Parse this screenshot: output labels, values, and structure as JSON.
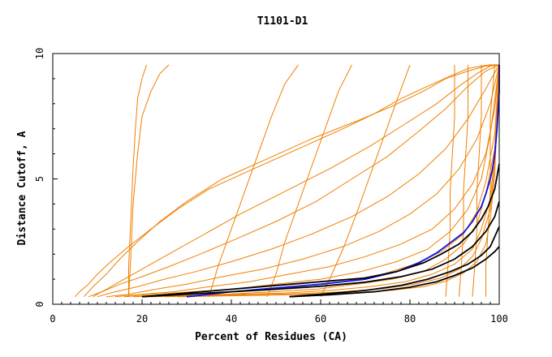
{
  "chart_data": {
    "type": "line",
    "title": "T1101-D1",
    "xlabel": "Percent of Residues (CA)",
    "ylabel": "Distance Cutoff, A",
    "xlim": [
      0,
      100
    ],
    "ylim": [
      0,
      10
    ],
    "x_ticks": [
      "0",
      "20",
      "40",
      "60",
      "80",
      "100"
    ],
    "y_ticks": [
      "0",
      "5",
      "10"
    ],
    "grid": false,
    "legend": "none",
    "colors": {
      "orange": "#f08000",
      "blue": "#1010e0",
      "black": "#000000",
      "axis": "#000000"
    },
    "series": [
      {
        "color": "orange",
        "x": [
          5,
          6,
          8,
          10,
          13,
          17,
          22,
          28,
          35,
          45,
          55,
          65,
          72,
          78,
          84,
          89,
          93,
          96,
          98,
          99,
          100
        ],
        "y": [
          0.3,
          0.5,
          0.8,
          1.2,
          1.7,
          2.3,
          3.0,
          3.8,
          4.6,
          5.4,
          6.2,
          7.0,
          7.6,
          8.2,
          8.7,
          9.1,
          9.4,
          9.5,
          9.55,
          9.55,
          9.55
        ]
      },
      {
        "color": "orange",
        "x": [
          7,
          9,
          12,
          15,
          19,
          24,
          30,
          38,
          48,
          58,
          68,
          76,
          83,
          88,
          93,
          97,
          100
        ],
        "y": [
          0.3,
          0.7,
          1.2,
          1.8,
          2.5,
          3.3,
          4.1,
          5.0,
          5.8,
          6.6,
          7.3,
          7.9,
          8.5,
          9.0,
          9.3,
          9.5,
          9.55
        ]
      },
      {
        "color": "orange",
        "x": [
          9,
          12,
          16,
          21,
          27,
          34,
          42,
          52,
          62,
          71,
          79,
          86,
          91,
          95,
          98,
          100
        ],
        "y": [
          0.3,
          0.6,
          1.0,
          1.5,
          2.1,
          2.8,
          3.6,
          4.5,
          5.4,
          6.3,
          7.2,
          8.0,
          8.7,
          9.2,
          9.5,
          9.55
        ]
      },
      {
        "color": "orange",
        "x": [
          8,
          11,
          15,
          20,
          26,
          33,
          41,
          50,
          59,
          67,
          75,
          82,
          88,
          93,
          97,
          100
        ],
        "y": [
          0.3,
          0.5,
          0.8,
          1.1,
          1.5,
          2.0,
          2.6,
          3.3,
          4.1,
          5.0,
          5.9,
          6.9,
          7.8,
          8.7,
          9.3,
          9.55
        ]
      },
      {
        "color": "orange",
        "x": [
          10,
          14,
          19,
          25,
          32,
          40,
          49,
          58,
          67,
          75,
          82,
          88,
          93,
          97,
          100
        ],
        "y": [
          0.3,
          0.5,
          0.7,
          1.0,
          1.3,
          1.7,
          2.2,
          2.8,
          3.5,
          4.3,
          5.2,
          6.2,
          7.4,
          8.6,
          9.55
        ]
      },
      {
        "color": "orange",
        "x": [
          12,
          17,
          23,
          30,
          38,
          47,
          56,
          65,
          73,
          80,
          86,
          91,
          95,
          98,
          100
        ],
        "y": [
          0.3,
          0.4,
          0.6,
          0.8,
          1.1,
          1.4,
          1.8,
          2.3,
          2.9,
          3.6,
          4.4,
          5.4,
          6.6,
          8.0,
          9.55
        ]
      },
      {
        "color": "orange",
        "x": [
          14,
          20,
          27,
          35,
          44,
          53,
          62,
          70,
          78,
          85,
          90,
          94,
          97,
          99,
          100
        ],
        "y": [
          0.3,
          0.4,
          0.5,
          0.7,
          0.9,
          1.2,
          1.5,
          1.9,
          2.4,
          3.0,
          3.8,
          4.8,
          6.0,
          7.8,
          9.55
        ]
      },
      {
        "color": "orange",
        "x": [
          16,
          23,
          31,
          40,
          50,
          60,
          69,
          77,
          84,
          89,
          93,
          96,
          98,
          100
        ],
        "y": [
          0.3,
          0.4,
          0.5,
          0.6,
          0.8,
          1.0,
          1.3,
          1.7,
          2.2,
          2.9,
          3.8,
          5.0,
          6.8,
          9.55
        ]
      },
      {
        "color": "orange",
        "x": [
          18,
          26,
          35,
          45,
          55,
          65,
          74,
          81,
          87,
          92,
          95,
          97,
          99,
          100
        ],
        "y": [
          0.3,
          0.35,
          0.45,
          0.55,
          0.7,
          0.9,
          1.2,
          1.6,
          2.1,
          2.8,
          3.7,
          4.9,
          6.8,
          9.55
        ]
      },
      {
        "color": "orange",
        "x": [
          20,
          29,
          39,
          49,
          59,
          68,
          76,
          83,
          88,
          92,
          95,
          97,
          99,
          100
        ],
        "y": [
          0.3,
          0.35,
          0.4,
          0.5,
          0.6,
          0.8,
          1.0,
          1.3,
          1.8,
          2.4,
          3.2,
          4.4,
          6.2,
          9.55
        ]
      },
      {
        "color": "orange",
        "x": [
          22,
          32,
          42,
          52,
          62,
          71,
          79,
          85,
          90,
          94,
          96,
          98,
          99,
          100
        ],
        "y": [
          0.3,
          0.35,
          0.4,
          0.45,
          0.55,
          0.7,
          0.9,
          1.2,
          1.6,
          2.2,
          3.0,
          4.2,
          6.0,
          9.55
        ]
      },
      {
        "color": "orange",
        "x": [
          25,
          35,
          45,
          55,
          65,
          74,
          81,
          87,
          91,
          94,
          96,
          98,
          99,
          100
        ],
        "y": [
          0.3,
          0.35,
          0.38,
          0.42,
          0.5,
          0.62,
          0.8,
          1.05,
          1.4,
          1.9,
          2.6,
          3.8,
          5.6,
          9.55
        ]
      },
      {
        "color": "orange",
        "x": [
          28,
          38,
          48,
          58,
          68,
          76,
          83,
          88,
          92,
          95,
          97,
          98,
          99,
          100
        ],
        "y": [
          0.3,
          0.33,
          0.36,
          0.4,
          0.46,
          0.56,
          0.7,
          0.92,
          1.25,
          1.7,
          2.4,
          3.4,
          5.2,
          9.55
        ]
      },
      {
        "color": "orange",
        "x": [
          17,
          17.5,
          18,
          19,
          20,
          22,
          24,
          26
        ],
        "y": [
          0.3,
          2.0,
          4.0,
          6.0,
          7.5,
          8.5,
          9.2,
          9.55
        ]
      },
      {
        "color": "orange",
        "x": [
          17,
          17,
          17.5,
          18,
          18.5,
          19,
          20,
          21
        ],
        "y": [
          0.3,
          1.5,
          3.5,
          5.5,
          7.0,
          8.2,
          9.0,
          9.55
        ]
      },
      {
        "color": "orange",
        "x": [
          35,
          37,
          40,
          43,
          46,
          49,
          52,
          55
        ],
        "y": [
          0.3,
          1.5,
          3.0,
          4.5,
          6.0,
          7.5,
          8.8,
          9.55
        ]
      },
      {
        "color": "orange",
        "x": [
          48,
          50,
          52,
          55,
          58,
          61,
          64,
          67
        ],
        "y": [
          0.3,
          1.2,
          2.5,
          4.0,
          5.5,
          7.0,
          8.5,
          9.55
        ]
      },
      {
        "color": "orange",
        "x": [
          60,
          62,
          65,
          68,
          71,
          74,
          77,
          80
        ],
        "y": [
          0.3,
          1.0,
          2.2,
          3.6,
          5.1,
          6.6,
          8.1,
          9.55
        ]
      },
      {
        "color": "orange",
        "x": [
          88,
          88.5,
          89,
          89,
          89.5,
          90,
          90,
          90
        ],
        "y": [
          0.3,
          1.5,
          3.0,
          4.5,
          6.0,
          7.5,
          8.5,
          9.55
        ]
      },
      {
        "color": "orange",
        "x": [
          91,
          91.5,
          92,
          92,
          92.5,
          93,
          93,
          93
        ],
        "y": [
          0.3,
          1.5,
          3.0,
          4.5,
          6.0,
          7.5,
          8.5,
          9.55
        ]
      },
      {
        "color": "orange",
        "x": [
          94,
          94.5,
          95,
          95,
          95.5,
          96,
          96,
          96
        ],
        "y": [
          0.3,
          1.5,
          3.0,
          4.5,
          6.0,
          7.5,
          8.5,
          9.55
        ]
      },
      {
        "color": "orange",
        "x": [
          97,
          97,
          97.5,
          98,
          98,
          98,
          98.5,
          99
        ],
        "y": [
          0.3,
          1.5,
          3.0,
          4.5,
          6.0,
          7.5,
          8.5,
          9.55
        ]
      },
      {
        "color": "blue",
        "x": [
          30,
          40,
          50,
          60,
          70,
          77,
          82,
          86,
          89,
          92,
          94,
          96,
          97,
          98,
          98.5,
          99,
          99.5,
          100,
          100
        ],
        "y": [
          0.3,
          0.5,
          0.65,
          0.8,
          1.0,
          1.3,
          1.65,
          2.05,
          2.45,
          2.85,
          3.3,
          3.9,
          4.4,
          5.0,
          5.4,
          6.0,
          7.0,
          8.5,
          9.55
        ]
      },
      {
        "color": "black",
        "x": [
          20,
          30,
          40,
          50,
          60,
          70,
          77,
          83,
          87,
          91,
          94,
          96,
          97.5,
          99,
          100
        ],
        "y": [
          0.3,
          0.45,
          0.6,
          0.75,
          0.9,
          1.05,
          1.3,
          1.65,
          2.0,
          2.4,
          2.9,
          3.4,
          3.9,
          4.6,
          5.6
        ]
      },
      {
        "color": "black",
        "x": [
          20,
          30,
          40,
          50,
          60,
          70,
          78,
          85,
          90,
          94,
          97,
          99,
          100
        ],
        "y": [
          0.3,
          0.4,
          0.5,
          0.6,
          0.72,
          0.88,
          1.1,
          1.4,
          1.8,
          2.3,
          2.9,
          3.5,
          4.1
        ]
      },
      {
        "color": "black",
        "x": [
          53,
          60,
          70,
          78,
          84,
          89,
          93,
          96,
          98,
          99,
          100
        ],
        "y": [
          0.3,
          0.4,
          0.55,
          0.75,
          1.0,
          1.3,
          1.6,
          1.95,
          2.3,
          2.7,
          3.1
        ]
      },
      {
        "color": "black",
        "x": [
          53,
          62,
          72,
          80,
          86,
          90,
          94,
          97,
          99,
          100
        ],
        "y": [
          0.3,
          0.38,
          0.5,
          0.68,
          0.9,
          1.15,
          1.45,
          1.8,
          2.1,
          2.3
        ]
      }
    ]
  }
}
